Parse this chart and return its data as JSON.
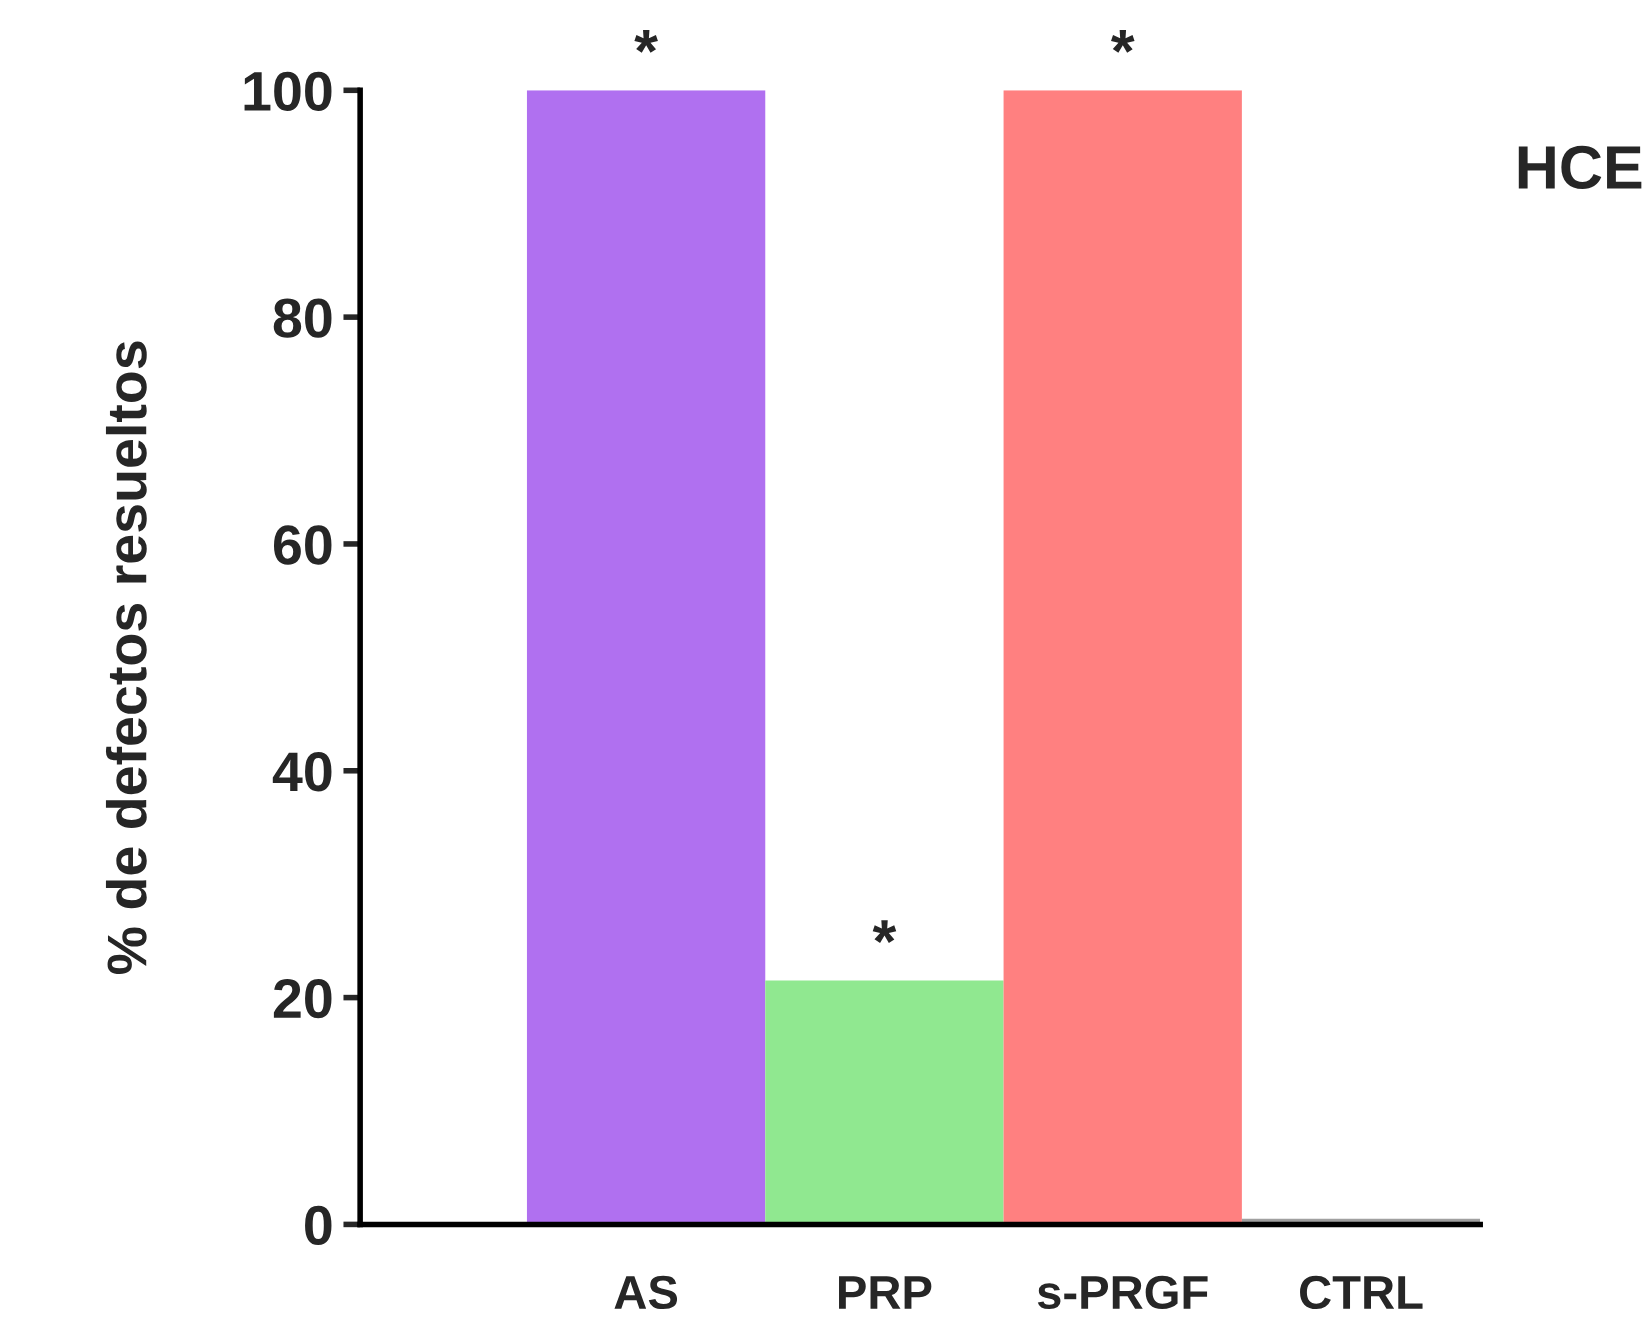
{
  "chart_data": {
    "type": "bar",
    "ylabel": "% de defectos resueltos",
    "categories": [
      "AS",
      "PRP",
      "s-PRGF",
      "CTRL"
    ],
    "values": [
      100,
      21.5,
      100,
      0.5
    ],
    "colors": [
      "#b070f0",
      "#90e890",
      "#ff8080",
      "#a0a0a0"
    ],
    "ylim": [
      0,
      100
    ],
    "yticks": [
      0,
      20,
      40,
      60,
      80,
      100
    ],
    "grid": false,
    "annotations": [
      {
        "text": "*",
        "x": "AS",
        "y": 100
      },
      {
        "text": "*",
        "x": "PRP",
        "y": 21.5
      },
      {
        "text": "*",
        "x": "s-PRGF",
        "y": 100
      },
      "HCE"
    ]
  }
}
